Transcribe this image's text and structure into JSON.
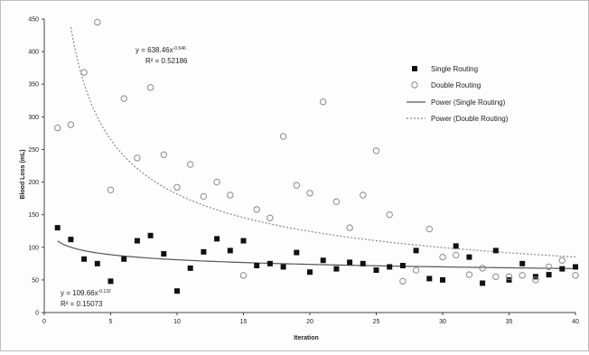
{
  "chart_data": {
    "type": "scatter",
    "title": "",
    "xlabel": "Iteration",
    "ylabel": "Blood Loss (mL)",
    "xlim": [
      0,
      40
    ],
    "ylim": [
      0,
      450
    ],
    "xticks": [
      0,
      5,
      10,
      15,
      20,
      25,
      30,
      35,
      40
    ],
    "yticks": [
      0,
      50,
      100,
      150,
      200,
      250,
      300,
      350,
      400,
      450
    ],
    "grid": false,
    "legend_position": "right",
    "series": [
      {
        "name": "Single Routing",
        "marker": "filled-square",
        "color": "#111111",
        "x": [
          1,
          2,
          3,
          4,
          5,
          6,
          7,
          8,
          9,
          10,
          11,
          12,
          13,
          14,
          15,
          16,
          17,
          18,
          19,
          20,
          21,
          22,
          23,
          24,
          25,
          26,
          27,
          28,
          29,
          30,
          31,
          32,
          33,
          34,
          35,
          36,
          37,
          38,
          39,
          40
        ],
        "y": [
          130,
          112,
          82,
          75,
          48,
          82,
          110,
          118,
          90,
          33,
          68,
          93,
          113,
          95,
          110,
          72,
          75,
          70,
          92,
          62,
          80,
          67,
          77,
          75,
          65,
          70,
          72,
          95,
          52,
          50,
          102,
          85,
          45,
          95,
          50,
          75,
          55,
          58,
          67,
          70
        ]
      },
      {
        "name": "Double Routing",
        "marker": "open-circle",
        "color": "#8a8a8a",
        "x": [
          1,
          2,
          3,
          4,
          5,
          6,
          7,
          8,
          9,
          10,
          11,
          12,
          13,
          14,
          15,
          16,
          17,
          18,
          19,
          20,
          21,
          22,
          23,
          24,
          25,
          26,
          27,
          28,
          29,
          30,
          31,
          32,
          33,
          34,
          35,
          36,
          37,
          38,
          39,
          40
        ],
        "y": [
          283,
          288,
          368,
          445,
          188,
          328,
          237,
          345,
          242,
          192,
          227,
          178,
          200,
          180,
          57,
          158,
          145,
          270,
          195,
          183,
          323,
          170,
          130,
          180,
          248,
          150,
          48,
          65,
          128,
          85,
          88,
          58,
          68,
          55,
          55,
          57,
          50,
          70,
          80,
          57
        ]
      }
    ],
    "trendlines": [
      {
        "name": "Power (Single Routing)",
        "style": "solid",
        "color": "#555555",
        "a": 109.66,
        "b": -0.132,
        "equation": "y = 109.66x",
        "exponent": "-0.132",
        "r2": "R² = 0.15073"
      },
      {
        "name": "Power (Double Routing)",
        "style": "dotted",
        "color": "#8a8a8a",
        "a": 638.46,
        "b": -0.546,
        "equation": "y = 638.46x",
        "exponent": "-0.546",
        "r2": "R² = 0.52186"
      }
    ]
  }
}
